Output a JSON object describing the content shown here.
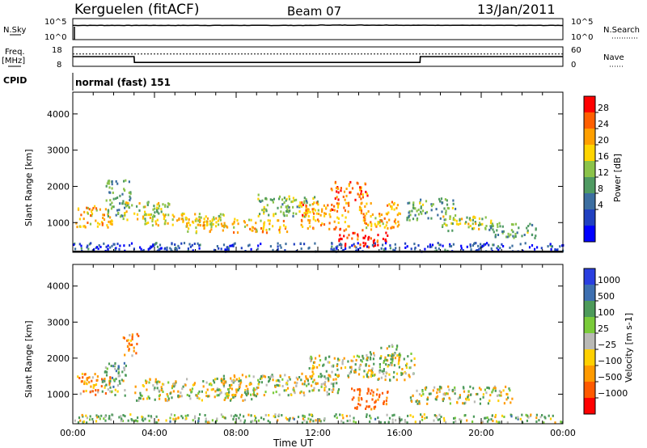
{
  "header": {
    "station": "Kerguelen (fitACF)",
    "beam": "Beam 07",
    "date": "13/Jan/2011"
  },
  "panels": {
    "nsky": {
      "label": "N.Sky",
      "top_tick": "10^5",
      "bottom_tick": "10^0",
      "right_top_tick": "10^5",
      "right_bottom_tick": "10^0",
      "right_label": "N.Search"
    },
    "freq": {
      "label_line1": "Freq.",
      "label_line2": "[MHz]",
      "top_tick": "18",
      "bottom_tick": "8",
      "right_top_tick": "60",
      "right_bottom_tick": "0",
      "right_label": "Nave"
    },
    "cpid": {
      "label": "CPID",
      "value": "normal (fast) 151"
    }
  },
  "axes": {
    "ylabel": "Slant Range [km]",
    "xlabel": "Time UT",
    "yticks": [
      "4000",
      "3000",
      "2000",
      "1000"
    ],
    "xticks": [
      "00:00",
      "04:00",
      "08:00",
      "12:00",
      "16:00",
      "20:00",
      "00:00"
    ]
  },
  "colorbars": {
    "power": {
      "label": "Power [dB]",
      "ticks": [
        "28",
        "24",
        "20",
        "16",
        "12",
        "8",
        "4"
      ],
      "colors": [
        "#0000ff",
        "#2040c0",
        "#3c6ea0",
        "#4f9a62",
        "#8bc34a",
        "#ffd400",
        "#ff9f00",
        "#ff5f00",
        "#ff0000"
      ]
    },
    "velocity": {
      "label": "Velocity [m s-1]",
      "ticks": [
        "1000",
        "500",
        "100",
        "25",
        "−25",
        "−100",
        "−500",
        "−1000"
      ],
      "colors": [
        "#2a3fe0",
        "#3d6fb0",
        "#4d9a5a",
        "#7acb3a",
        "#b9b9b5",
        "#ffd000",
        "#ff9a00",
        "#ff5a00",
        "#ff0000"
      ]
    }
  },
  "chart_data": [
    {
      "type": "line",
      "title": "N.Sky / N.Search",
      "x": [
        "00:00",
        "04:00",
        "08:00",
        "12:00",
        "16:00",
        "20:00",
        "00:00"
      ],
      "series": [
        {
          "name": "N.Sky",
          "values": [
            10000,
            10000,
            10000,
            12000,
            11000,
            10000,
            10000
          ]
        },
        {
          "name": "N.Search",
          "values": [
            0,
            0,
            0,
            0,
            0,
            0,
            0
          ]
        }
      ],
      "ylim_log": [
        1,
        100000
      ]
    },
    {
      "type": "line",
      "title": "Freq. [MHz] / Nave",
      "x": [
        "00:00",
        "03:00",
        "03:01",
        "17:00",
        "17:01",
        "24:00"
      ],
      "series": [
        {
          "name": "Freq.",
          "values": [
            13,
            13,
            10,
            10,
            13,
            13
          ]
        },
        {
          "name": "Nave",
          "values": [
            38,
            38,
            38,
            38,
            38,
            38
          ]
        }
      ],
      "ylim": [
        8,
        18
      ]
    },
    {
      "type": "heatmap",
      "title": "Power [dB]",
      "xlabel": "Time UT",
      "ylabel": "Slant Range [km]",
      "xlim_hours": [
        0,
        24
      ],
      "ylim": [
        180,
        4600
      ],
      "clim": [
        0,
        30
      ],
      "blobs": [
        {
          "t": 1.0,
          "r": 1200,
          "w": 0.9,
          "h": 300,
          "v": 20
        },
        {
          "t": 2.2,
          "r": 1700,
          "w": 0.6,
          "h": 500,
          "v": 12
        },
        {
          "t": 3.5,
          "r": 1350,
          "w": 1.2,
          "h": 250,
          "v": 16
        },
        {
          "t": 5.5,
          "r": 1100,
          "w": 2.0,
          "h": 200,
          "v": 18
        },
        {
          "t": 8.0,
          "r": 950,
          "w": 2.5,
          "h": 200,
          "v": 20
        },
        {
          "t": 10.5,
          "r": 1500,
          "w": 1.5,
          "h": 300,
          "v": 14
        },
        {
          "t": 12.3,
          "r": 1200,
          "w": 1.2,
          "h": 400,
          "v": 22
        },
        {
          "t": 13.5,
          "r": 1900,
          "w": 0.9,
          "h": 250,
          "v": 24
        },
        {
          "t": 14.2,
          "r": 550,
          "w": 1.2,
          "h": 200,
          "v": 28
        },
        {
          "t": 15.0,
          "r": 1200,
          "w": 1.0,
          "h": 400,
          "v": 20
        },
        {
          "t": 17.5,
          "r": 1400,
          "w": 1.2,
          "h": 300,
          "v": 12
        },
        {
          "t": 19.5,
          "r": 1000,
          "w": 1.5,
          "h": 200,
          "v": 16
        },
        {
          "t": 21.5,
          "r": 800,
          "w": 1.2,
          "h": 200,
          "v": 12
        },
        {
          "t": 12.0,
          "r": 350,
          "w": 12.0,
          "h": 120,
          "v": 6
        }
      ]
    },
    {
      "type": "heatmap",
      "title": "Velocity [m s-1]",
      "xlabel": "Time UT",
      "ylabel": "Slant Range [km]",
      "xlim_hours": [
        0,
        24
      ],
      "ylim": [
        180,
        4600
      ],
      "clim": [
        -1000,
        1000
      ],
      "blobs": [
        {
          "t": 1.0,
          "r": 1300,
          "w": 0.8,
          "h": 300,
          "v": -150
        },
        {
          "t": 2.0,
          "r": 1400,
          "w": 0.6,
          "h": 500,
          "v": 80
        },
        {
          "t": 2.8,
          "r": 2400,
          "w": 0.4,
          "h": 300,
          "v": -150
        },
        {
          "t": 6.0,
          "r": 1150,
          "w": 3.0,
          "h": 300,
          "v": 0
        },
        {
          "t": 10.0,
          "r": 1300,
          "w": 3.0,
          "h": 300,
          "v": 0
        },
        {
          "t": 13.0,
          "r": 1800,
          "w": 1.5,
          "h": 300,
          "v": 0
        },
        {
          "t": 15.5,
          "r": 1800,
          "w": 1.2,
          "h": 400,
          "v": 0
        },
        {
          "t": 14.5,
          "r": 900,
          "w": 0.9,
          "h": 300,
          "v": -300
        },
        {
          "t": 19.0,
          "r": 1000,
          "w": 2.5,
          "h": 250,
          "v": 0
        },
        {
          "t": 12.0,
          "r": 350,
          "w": 12.0,
          "h": 120,
          "v": 60
        },
        {
          "t": 15.5,
          "r": 2100,
          "w": 0.5,
          "h": 300,
          "v": 60
        }
      ]
    }
  ]
}
